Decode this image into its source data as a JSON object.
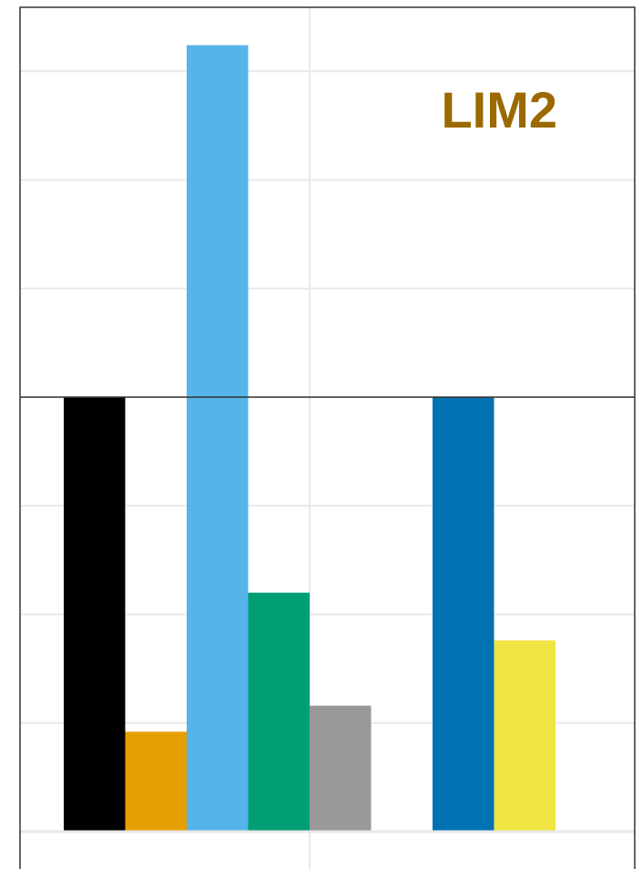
{
  "chart_data": {
    "type": "bar",
    "panel_label": "LIM2",
    "categories": [
      "",
      "",
      "",
      "",
      "",
      "",
      ""
    ],
    "values": [
      1.0,
      0.23,
      1.81,
      0.55,
      0.29,
      1.0,
      0.44
    ],
    "colors": [
      "#000000",
      "#e69f00",
      "#56b4e9",
      "#009e73",
      "#999999",
      "#0072b2",
      "#f0e442"
    ],
    "groups": [
      [
        0,
        1,
        2,
        3,
        4
      ],
      [
        5,
        6
      ]
    ],
    "reference_line": 1.0,
    "ylim": [
      0,
      2.0
    ],
    "y_gridlines": [
      0,
      0.25,
      0.5,
      0.75,
      1.0,
      1.25,
      1.5,
      1.75
    ],
    "title": "",
    "xlabel": "",
    "ylabel": "",
    "grid": true,
    "accent_color": "#9a6a00"
  }
}
